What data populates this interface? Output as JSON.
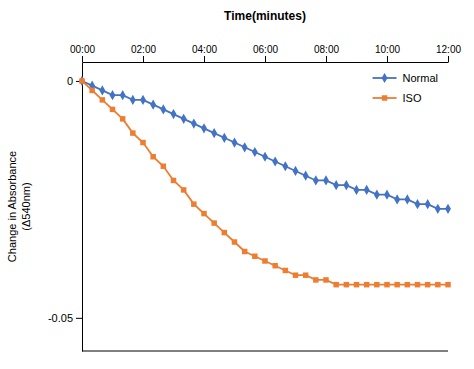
{
  "chart_data": {
    "type": "line",
    "xlabel": "Time(minutes)",
    "ylabel": "Change in Absorbance\n(Δ540nm)",
    "xlim": [
      0,
      720
    ],
    "ylim": [
      -0.057,
      0.004
    ],
    "xticks": [
      {
        "value": 0,
        "label": "00:00"
      },
      {
        "value": 120,
        "label": "02:00"
      },
      {
        "value": 240,
        "label": "04:00"
      },
      {
        "value": 360,
        "label": "06:00"
      },
      {
        "value": 480,
        "label": "08:00"
      },
      {
        "value": 600,
        "label": "10:00"
      },
      {
        "value": 720,
        "label": "12:00"
      }
    ],
    "yticks": [
      0,
      -0.05
    ],
    "grid": false,
    "legend": "upper right",
    "x": [
      0,
      20,
      40,
      60,
      80,
      100,
      120,
      140,
      160,
      180,
      200,
      220,
      240,
      260,
      280,
      300,
      320,
      340,
      360,
      380,
      400,
      420,
      440,
      460,
      480,
      500,
      520,
      540,
      560,
      580,
      600,
      620,
      640,
      660,
      680,
      700,
      720
    ],
    "series": [
      {
        "name": "Normal",
        "color": "#4472C4",
        "marker": "diamond",
        "values": [
          0.0,
          -0.001,
          -0.002,
          -0.003,
          -0.003,
          -0.004,
          -0.004,
          -0.005,
          -0.006,
          -0.007,
          -0.008,
          -0.009,
          -0.01,
          -0.011,
          -0.012,
          -0.013,
          -0.014,
          -0.015,
          -0.016,
          -0.017,
          -0.018,
          -0.019,
          -0.02,
          -0.021,
          -0.021,
          -0.022,
          -0.022,
          -0.023,
          -0.023,
          -0.024,
          -0.024,
          -0.025,
          -0.025,
          -0.026,
          -0.026,
          -0.027,
          -0.027
        ]
      },
      {
        "name": "ISO",
        "color": "#ED7D31",
        "marker": "square",
        "values": [
          0.0,
          -0.002,
          -0.004,
          -0.006,
          -0.008,
          -0.011,
          -0.013,
          -0.016,
          -0.018,
          -0.021,
          -0.023,
          -0.026,
          -0.028,
          -0.03,
          -0.032,
          -0.034,
          -0.036,
          -0.037,
          -0.038,
          -0.039,
          -0.04,
          -0.041,
          -0.041,
          -0.042,
          -0.042,
          -0.043,
          -0.043,
          -0.043,
          -0.043,
          -0.043,
          -0.043,
          -0.043,
          -0.043,
          -0.043,
          -0.043,
          -0.043,
          -0.043
        ]
      }
    ]
  }
}
